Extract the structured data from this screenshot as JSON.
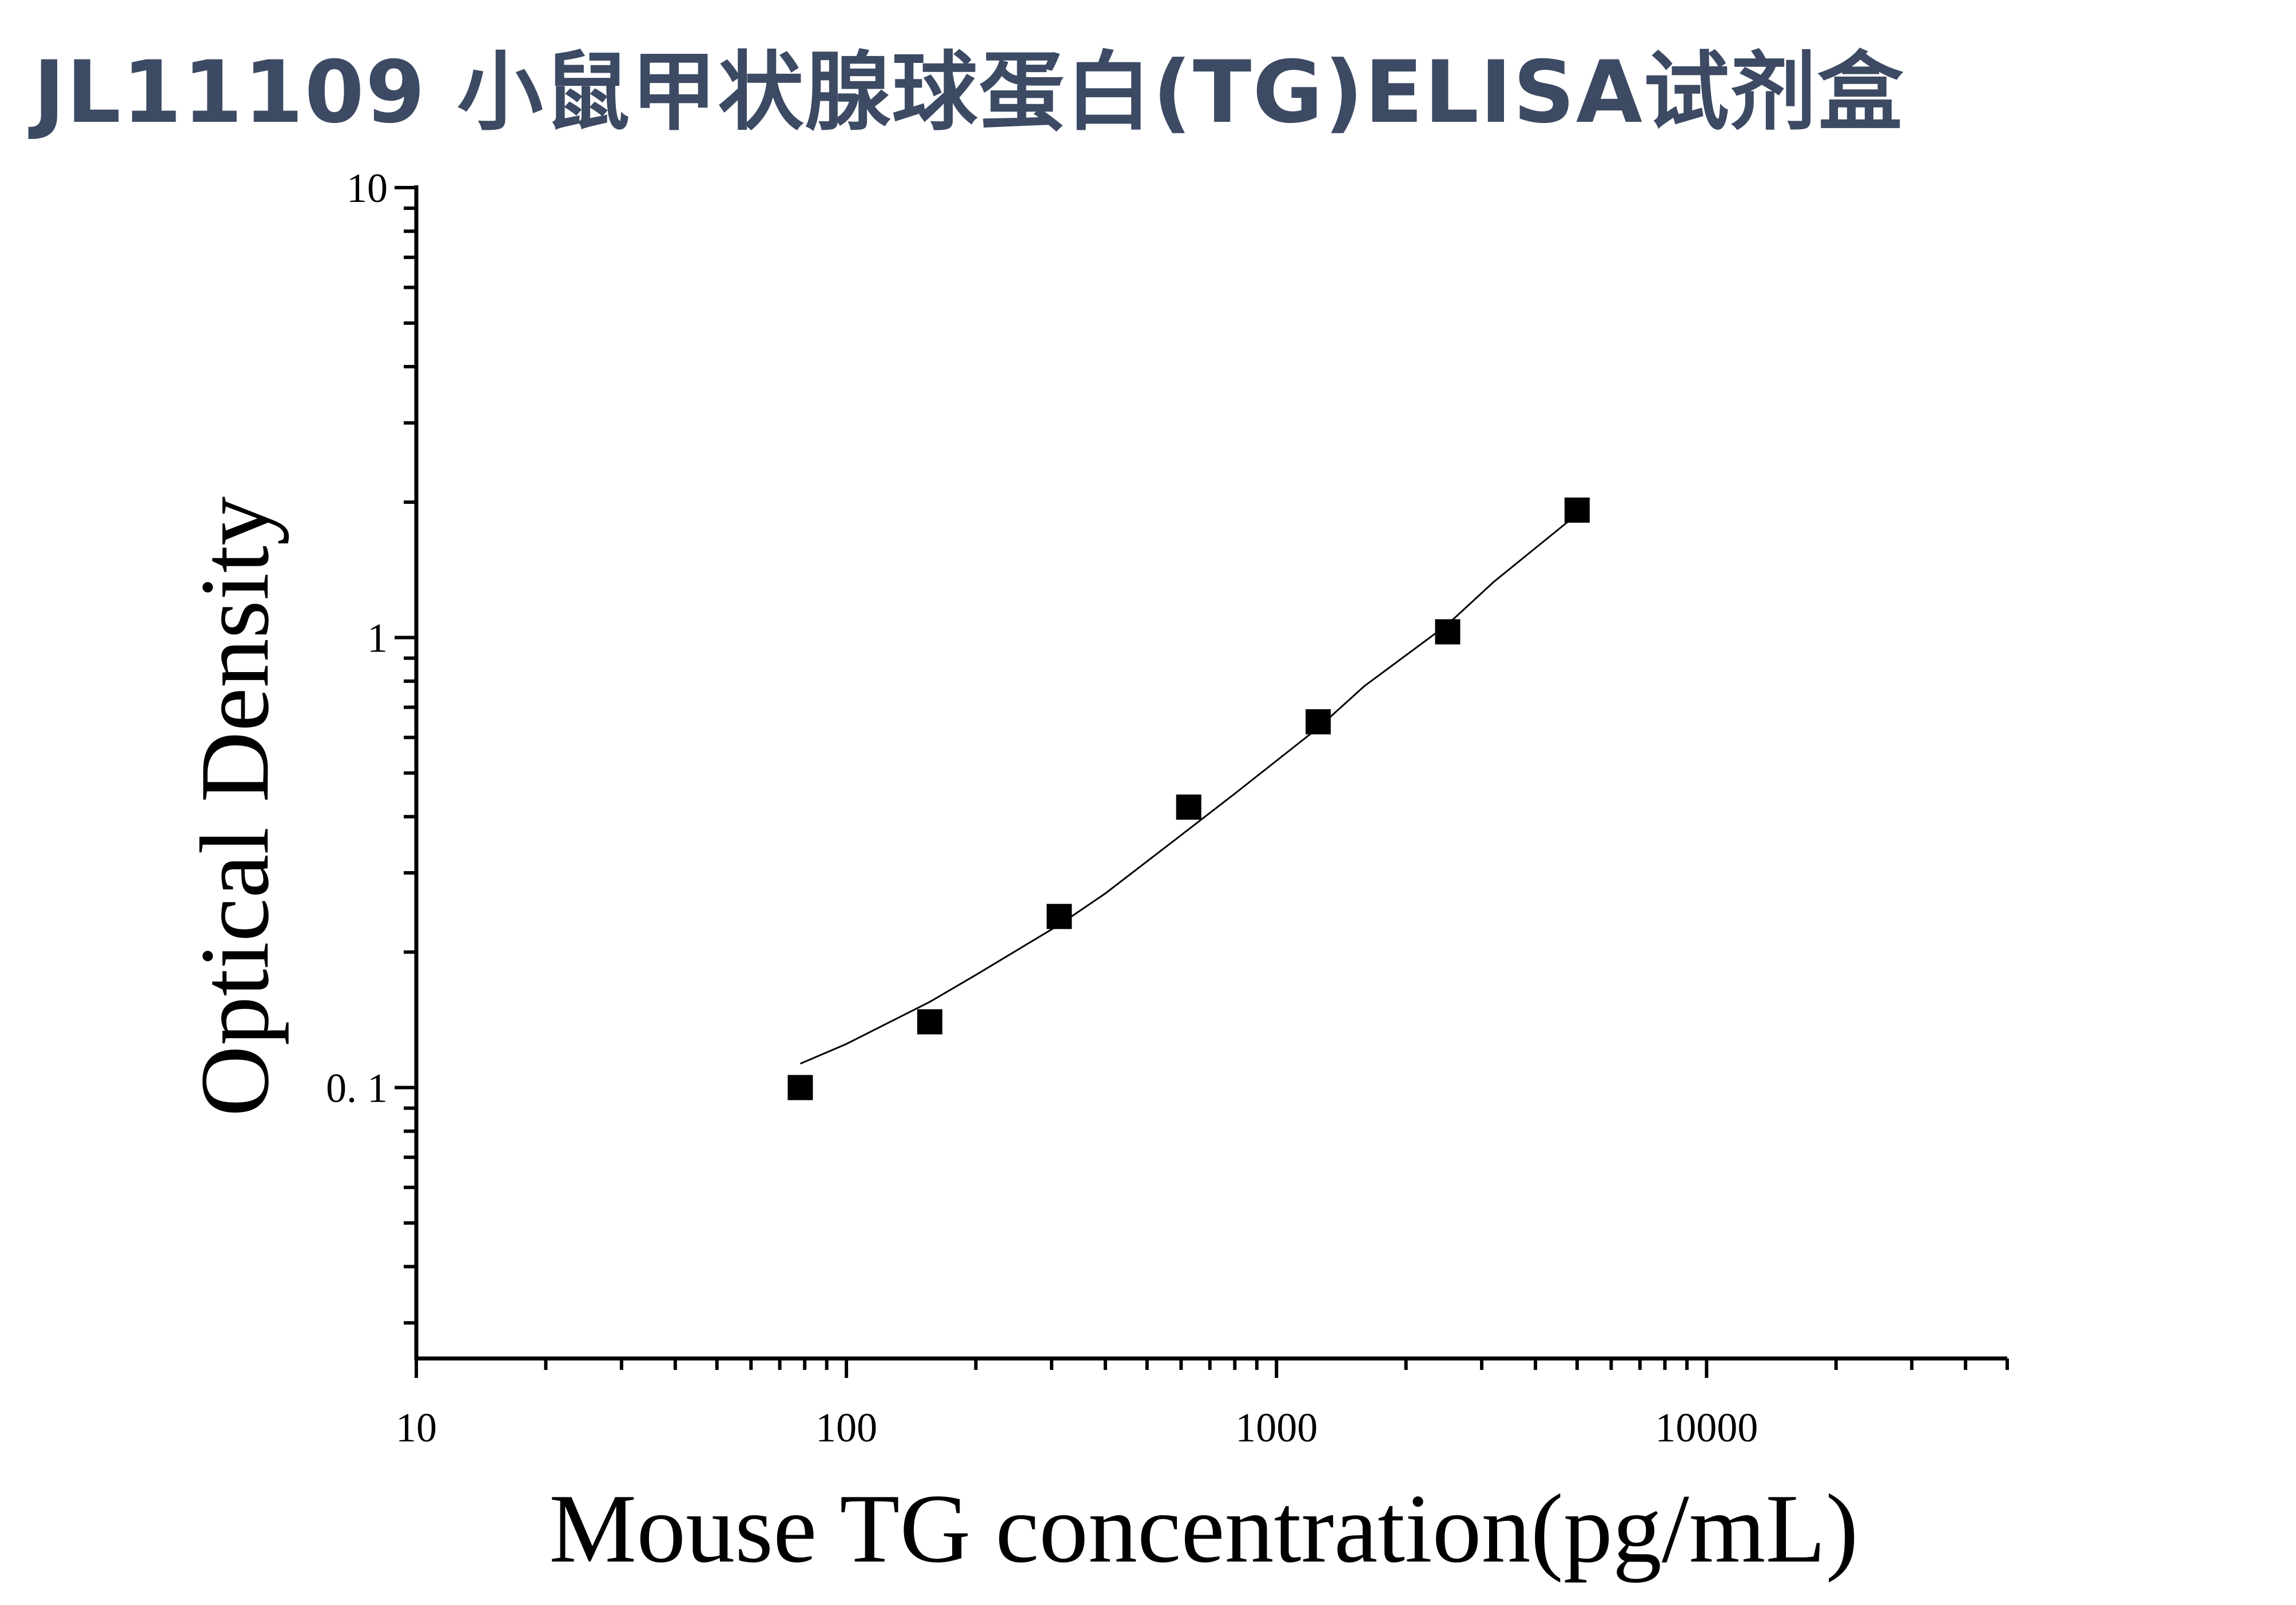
{
  "page": {
    "title": "JL11109 小鼠甲状腺球蛋白(TG)ELISA试剂盒"
  },
  "chart_data": {
    "type": "scatter",
    "title": "",
    "xlabel": "Mouse TG concentration(pg/mL)",
    "ylabel": "Optical Density",
    "xscale": "log",
    "yscale": "log",
    "xlim": [
      10,
      50000
    ],
    "ylim": [
      0.025,
      10
    ],
    "x_ticks": [
      {
        "value": 10,
        "label": "10"
      },
      {
        "value": 100,
        "label": "100"
      },
      {
        "value": 1000,
        "label": "1000"
      },
      {
        "value": 10000,
        "label": "10000"
      }
    ],
    "y_ticks": [
      {
        "value": 0.1,
        "label": "0. 1"
      },
      {
        "value": 1,
        "label": "1"
      },
      {
        "value": 10,
        "label": "10"
      }
    ],
    "grid": false,
    "marker": "square",
    "marker_color": "#000000",
    "line_color": "#000000",
    "points": [
      {
        "x": 78.125,
        "y": 0.1
      },
      {
        "x": 156.25,
        "y": 0.14
      },
      {
        "x": 312.5,
        "y": 0.24
      },
      {
        "x": 625,
        "y": 0.42
      },
      {
        "x": 1250,
        "y": 0.65
      },
      {
        "x": 2500,
        "y": 1.03
      },
      {
        "x": 5000,
        "y": 1.92
      }
    ],
    "fit_curve": {
      "x": [
        78.125,
        100,
        156.25,
        200,
        312.5,
        400,
        625,
        800,
        1250,
        1600,
        2500,
        3200,
        5000
      ],
      "y": [
        0.113,
        0.125,
        0.155,
        0.178,
        0.23,
        0.27,
        0.375,
        0.45,
        0.63,
        0.78,
        1.07,
        1.33,
        1.88
      ]
    }
  }
}
